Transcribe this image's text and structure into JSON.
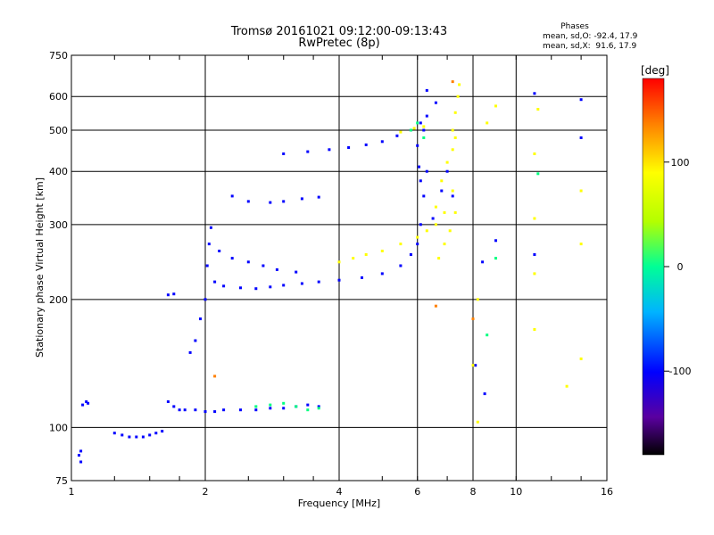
{
  "chart_data": {
    "type": "scatter",
    "title": "Tromsø 20161021 09:12:00-09:13:43",
    "subtitle": "RwPretec (8p)",
    "xlabel": "Frequency [MHz]",
    "ylabel": "Stationary phase Virtual Height [km]",
    "x_scale": "log2",
    "y_scale": "log",
    "xlim": [
      1,
      16
    ],
    "ylim": [
      75,
      750
    ],
    "x_ticks": [
      1,
      2,
      4,
      6,
      8,
      10,
      16
    ],
    "y_ticks": [
      75,
      100,
      200,
      300,
      400,
      500,
      600,
      750
    ],
    "grid": true,
    "legend": {
      "title": "Phases",
      "lines": [
        "mean, sd,O: -92.4, 17.9",
        "mean, sd,X:  91.6, 17.9"
      ]
    },
    "colorbar": {
      "label": "[deg]",
      "range": [
        -180,
        180
      ],
      "ticks": [
        100,
        0,
        -100
      ],
      "colors": [
        "#000000",
        "#5a00a0",
        "#0000ff",
        "#00c8ff",
        "#00ff80",
        "#c8ff00",
        "#ffff00",
        "#ff8000",
        "#ff0000"
      ]
    },
    "series": [
      {
        "name": "",
        "phase": -100,
        "points": [
          [
            1.04,
            86
          ],
          [
            1.05,
            88
          ],
          [
            1.05,
            83
          ],
          [
            1.06,
            113
          ],
          [
            1.08,
            115
          ],
          [
            1.09,
            114
          ],
          [
            1.25,
            97
          ],
          [
            1.3,
            96
          ],
          [
            1.35,
            95
          ],
          [
            1.4,
            95
          ],
          [
            1.45,
            95
          ],
          [
            1.5,
            96
          ],
          [
            1.55,
            97
          ],
          [
            1.6,
            98
          ],
          [
            1.65,
            115
          ],
          [
            1.7,
            112
          ],
          [
            1.75,
            110
          ],
          [
            1.8,
            110
          ],
          [
            1.9,
            110
          ],
          [
            2.0,
            109
          ],
          [
            2.1,
            109
          ],
          [
            2.2,
            110
          ],
          [
            2.4,
            110
          ],
          [
            2.6,
            110
          ],
          [
            2.8,
            111
          ],
          [
            3.0,
            111
          ],
          [
            3.2,
            112
          ],
          [
            3.4,
            113
          ],
          [
            3.6,
            112
          ],
          [
            1.65,
            205
          ],
          [
            1.7,
            206
          ],
          [
            1.85,
            150
          ],
          [
            1.9,
            160
          ],
          [
            1.95,
            180
          ],
          [
            2.0,
            200
          ],
          [
            2.02,
            240
          ],
          [
            2.04,
            270
          ],
          [
            2.06,
            295
          ],
          [
            2.1,
            220
          ],
          [
            2.2,
            215
          ],
          [
            2.4,
            213
          ],
          [
            2.6,
            212
          ],
          [
            2.8,
            214
          ],
          [
            3.0,
            216
          ],
          [
            3.3,
            218
          ],
          [
            3.6,
            220
          ],
          [
            4.0,
            222
          ],
          [
            4.5,
            225
          ],
          [
            5.0,
            230
          ],
          [
            5.5,
            240
          ],
          [
            5.8,
            255
          ],
          [
            6.0,
            270
          ],
          [
            6.1,
            300
          ],
          [
            6.2,
            350
          ],
          [
            6.3,
            400
          ],
          [
            2.15,
            260
          ],
          [
            2.3,
            250
          ],
          [
            2.5,
            245
          ],
          [
            2.7,
            240
          ],
          [
            2.9,
            235
          ],
          [
            3.2,
            232
          ],
          [
            2.3,
            350
          ],
          [
            2.5,
            340
          ],
          [
            2.8,
            338
          ],
          [
            3.0,
            340
          ],
          [
            3.3,
            345
          ],
          [
            3.6,
            348
          ],
          [
            3.0,
            440
          ],
          [
            3.4,
            445
          ],
          [
            3.8,
            450
          ],
          [
            4.2,
            455
          ],
          [
            4.6,
            462
          ],
          [
            5.0,
            470
          ],
          [
            5.4,
            485
          ],
          [
            5.8,
            500
          ],
          [
            6.1,
            520
          ],
          [
            6.3,
            540
          ],
          [
            6.6,
            580
          ],
          [
            6.0,
            460
          ],
          [
            6.05,
            410
          ],
          [
            6.1,
            380
          ],
          [
            6.2,
            500
          ],
          [
            6.3,
            620
          ],
          [
            6.5,
            310
          ],
          [
            6.8,
            360
          ],
          [
            7.0,
            400
          ],
          [
            7.2,
            350
          ],
          [
            8.4,
            245
          ],
          [
            9.0,
            275
          ],
          [
            8.1,
            140
          ],
          [
            8.5,
            120
          ],
          [
            11.0,
            610
          ],
          [
            11.0,
            255
          ],
          [
            14.0,
            590
          ],
          [
            14.0,
            480
          ]
        ]
      },
      {
        "name": "",
        "phase": 100,
        "points": [
          [
            4.0,
            245
          ],
          [
            4.3,
            250
          ],
          [
            4.6,
            255
          ],
          [
            5.0,
            260
          ],
          [
            5.5,
            270
          ],
          [
            6.0,
            280
          ],
          [
            6.3,
            290
          ],
          [
            6.6,
            300
          ],
          [
            6.9,
            320
          ],
          [
            6.6,
            330
          ],
          [
            6.8,
            380
          ],
          [
            7.0,
            420
          ],
          [
            7.2,
            450
          ],
          [
            7.3,
            480
          ],
          [
            7.2,
            500
          ],
          [
            7.3,
            550
          ],
          [
            7.4,
            600
          ],
          [
            7.45,
            640
          ],
          [
            6.7,
            250
          ],
          [
            6.9,
            270
          ],
          [
            7.1,
            290
          ],
          [
            7.3,
            320
          ],
          [
            7.2,
            360
          ],
          [
            5.5,
            495
          ],
          [
            5.9,
            505
          ],
          [
            6.2,
            510
          ],
          [
            8.2,
            200
          ],
          [
            8.0,
            140
          ],
          [
            8.2,
            103
          ],
          [
            8.6,
            520
          ],
          [
            9.0,
            570
          ],
          [
            11.0,
            440
          ],
          [
            11.2,
            560
          ],
          [
            11.0,
            310
          ],
          [
            11.0,
            230
          ],
          [
            11.0,
            170
          ],
          [
            13.0,
            125
          ],
          [
            14.0,
            360
          ],
          [
            14.0,
            270
          ],
          [
            14.0,
            145
          ]
        ]
      },
      {
        "name": "",
        "phase": 0,
        "points": [
          [
            2.6,
            112
          ],
          [
            2.8,
            113
          ],
          [
            3.0,
            114
          ],
          [
            3.2,
            112
          ],
          [
            3.4,
            110
          ],
          [
            3.6,
            111
          ],
          [
            5.8,
            500
          ],
          [
            6.0,
            520
          ],
          [
            6.2,
            480
          ],
          [
            8.6,
            165
          ],
          [
            9.0,
            250
          ],
          [
            11.2,
            395
          ]
        ]
      },
      {
        "name": "",
        "phase": 150,
        "points": [
          [
            6.6,
            193
          ],
          [
            8.0,
            180
          ],
          [
            7.2,
            650
          ],
          [
            2.1,
            132
          ]
        ]
      }
    ]
  }
}
